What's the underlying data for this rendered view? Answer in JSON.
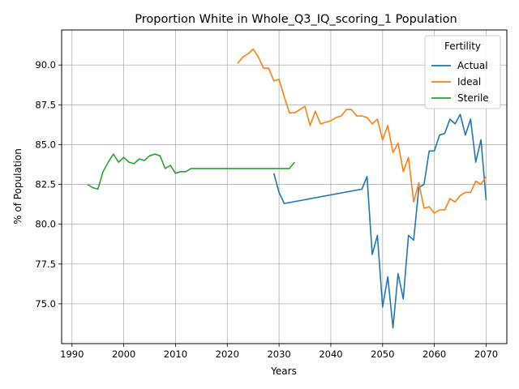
{
  "chart_data": {
    "type": "line",
    "title": "Proportion White in Whole_Q3_IQ_scoring_1 Population",
    "xlabel": "Years",
    "ylabel": "% of Population",
    "xlim": [
      1988,
      2074
    ],
    "ylim": [
      72.5,
      92.2
    ],
    "xticks": [
      1990,
      2000,
      2010,
      2020,
      2030,
      2040,
      2050,
      2060,
      2070
    ],
    "yticks": [
      75.0,
      77.5,
      80.0,
      82.5,
      85.0,
      87.5,
      90.0
    ],
    "grid": true,
    "legend": {
      "title": "Fertility",
      "position": "top-right"
    },
    "series": [
      {
        "name": "Actual",
        "color": "#1f77b4",
        "points": [
          [
            2029,
            83.2
          ],
          [
            2030,
            82.0
          ],
          [
            2031,
            81.3
          ],
          [
            2046,
            82.2
          ],
          [
            2047,
            83.0
          ],
          [
            2048,
            78.1
          ],
          [
            2049,
            79.3
          ],
          [
            2050,
            74.8
          ],
          [
            2051,
            76.7
          ],
          [
            2052,
            73.5
          ],
          [
            2053,
            76.9
          ],
          [
            2054,
            75.3
          ],
          [
            2055,
            79.3
          ],
          [
            2056,
            79.0
          ],
          [
            2057,
            82.3
          ],
          [
            2058,
            82.5
          ],
          [
            2059,
            84.6
          ],
          [
            2060,
            84.6
          ],
          [
            2061,
            85.6
          ],
          [
            2062,
            85.7
          ],
          [
            2063,
            86.6
          ],
          [
            2064,
            86.3
          ],
          [
            2065,
            86.9
          ],
          [
            2066,
            85.6
          ],
          [
            2067,
            86.6
          ],
          [
            2068,
            83.9
          ],
          [
            2069,
            85.3
          ],
          [
            2070,
            81.5
          ]
        ]
      },
      {
        "name": "Ideal",
        "color": "#ff7f0e",
        "points": [
          [
            2022,
            90.1
          ],
          [
            2023,
            90.5
          ],
          [
            2024,
            90.7
          ],
          [
            2025,
            91.0
          ],
          [
            2026,
            90.5
          ],
          [
            2027,
            89.8
          ],
          [
            2028,
            89.8
          ],
          [
            2029,
            89.0
          ],
          [
            2030,
            89.1
          ],
          [
            2031,
            88.0
          ],
          [
            2032,
            87.0
          ],
          [
            2033,
            87.0
          ],
          [
            2034,
            87.2
          ],
          [
            2035,
            87.4
          ],
          [
            2036,
            86.2
          ],
          [
            2037,
            87.1
          ],
          [
            2038,
            86.3
          ],
          [
            2039,
            86.4
          ],
          [
            2040,
            86.5
          ],
          [
            2041,
            86.7
          ],
          [
            2042,
            86.8
          ],
          [
            2043,
            87.2
          ],
          [
            2044,
            87.2
          ],
          [
            2045,
            86.8
          ],
          [
            2046,
            86.8
          ],
          [
            2047,
            86.7
          ],
          [
            2048,
            86.3
          ],
          [
            2049,
            86.6
          ],
          [
            2050,
            85.3
          ],
          [
            2051,
            86.2
          ],
          [
            2052,
            84.5
          ],
          [
            2053,
            85.1
          ],
          [
            2054,
            83.3
          ],
          [
            2055,
            84.2
          ],
          [
            2056,
            81.4
          ],
          [
            2057,
            82.6
          ],
          [
            2058,
            81.0
          ],
          [
            2059,
            81.1
          ],
          [
            2060,
            80.7
          ],
          [
            2061,
            80.9
          ],
          [
            2062,
            80.9
          ],
          [
            2063,
            81.6
          ],
          [
            2064,
            81.4
          ],
          [
            2065,
            81.8
          ],
          [
            2066,
            82.0
          ],
          [
            2067,
            82.0
          ],
          [
            2068,
            82.7
          ],
          [
            2069,
            82.5
          ],
          [
            2070,
            83.0
          ]
        ]
      },
      {
        "name": "Sterile",
        "color": "#2ca02c",
        "points": [
          [
            1993,
            82.5
          ],
          [
            1994,
            82.3
          ],
          [
            1995,
            82.2
          ],
          [
            1996,
            83.3
          ],
          [
            1997,
            83.9
          ],
          [
            1998,
            84.4
          ],
          [
            1999,
            83.9
          ],
          [
            2000,
            84.2
          ],
          [
            2001,
            83.9
          ],
          [
            2002,
            83.8
          ],
          [
            2003,
            84.1
          ],
          [
            2004,
            84.0
          ],
          [
            2005,
            84.3
          ],
          [
            2006,
            84.4
          ],
          [
            2007,
            84.3
          ],
          [
            2008,
            83.5
          ],
          [
            2009,
            83.7
          ],
          [
            2010,
            83.2
          ],
          [
            2011,
            83.3
          ],
          [
            2012,
            83.3
          ],
          [
            2013,
            83.5
          ],
          [
            2020,
            83.5
          ],
          [
            2030,
            83.5
          ],
          [
            2032,
            83.5
          ],
          [
            2033,
            83.9
          ]
        ]
      }
    ]
  }
}
